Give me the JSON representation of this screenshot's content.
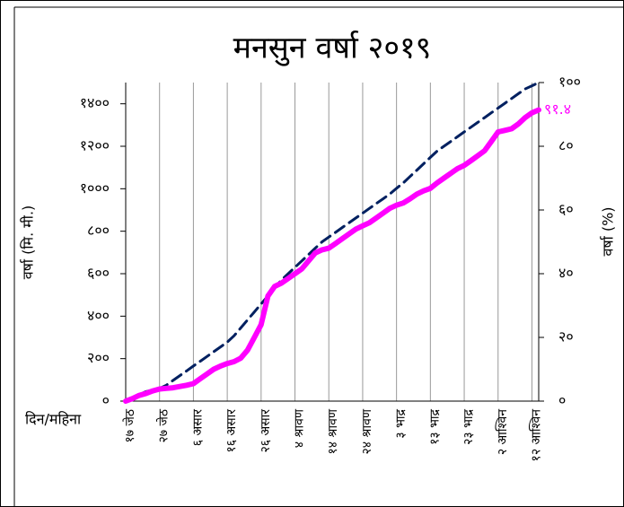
{
  "chart_data": {
    "type": "line",
    "title": "मनसुन वर्षा २०१९",
    "y_label": "वर्षा (मि. मी.)",
    "y2_label": "वर्षा (%)",
    "x_label": "दिन/महिना",
    "categories": [
      "१७ जेठ",
      null,
      null,
      null,
      null,
      "२७ जेठ",
      null,
      null,
      null,
      null,
      "६ असार",
      null,
      null,
      null,
      null,
      "१६ असार",
      null,
      null,
      null,
      null,
      "२६ असार",
      null,
      null,
      null,
      null,
      "४ श्रावण",
      null,
      null,
      null,
      null,
      "१४ श्रावण",
      null,
      null,
      null,
      null,
      "२४ श्रावण",
      null,
      null,
      null,
      null,
      "३ भाद्र",
      null,
      null,
      null,
      null,
      "१३ भाद्र",
      null,
      null,
      null,
      null,
      "२३ भाद्र",
      null,
      null,
      null,
      null,
      "२ आश्विन",
      null,
      null,
      null,
      null,
      "१२ आश्विन",
      null
    ],
    "ylim": [
      0,
      1500
    ],
    "yticks": [
      {
        "value": 0,
        "label": "०"
      },
      {
        "value": 200,
        "label": "२००"
      },
      {
        "value": 400,
        "label": "४००"
      },
      {
        "value": 600,
        "label": "६००"
      },
      {
        "value": 800,
        "label": "८००"
      },
      {
        "value": 1000,
        "label": "१०००"
      },
      {
        "value": 1200,
        "label": "१२००"
      },
      {
        "value": 1400,
        "label": "१४००"
      }
    ],
    "y2lim": [
      0,
      100
    ],
    "y2ticks": [
      {
        "value": 0,
        "label": "०"
      },
      {
        "value": 20,
        "label": "२०"
      },
      {
        "value": 40,
        "label": "४०"
      },
      {
        "value": 60,
        "label": "६०"
      },
      {
        "value": 80,
        "label": "८०"
      },
      {
        "value": 100,
        "label": "१००"
      }
    ],
    "xgrid": true,
    "series": [
      {
        "axis": "y2",
        "color": "#002060",
        "dashed": true,
        "values": [
          0,
          1,
          2,
          3,
          3.5,
          4,
          5,
          6.5,
          8,
          9.5,
          11,
          12.5,
          14,
          15.5,
          17,
          18.5,
          20.5,
          23,
          25.5,
          28,
          30.5,
          33,
          35.5,
          38,
          40,
          42,
          44,
          46,
          48,
          50,
          51.5,
          53,
          54.5,
          56,
          57.5,
          59,
          60.5,
          62,
          63.5,
          65,
          66.8,
          68.5,
          70.5,
          72.5,
          74.5,
          76.5,
          78.5,
          80,
          81.5,
          83,
          84.5,
          86,
          87.5,
          89,
          90.5,
          92,
          93.5,
          95,
          96.5,
          98,
          99,
          100
        ]
      },
      {
        "axis": "y2",
        "color": "#ff00ff",
        "dashed": false,
        "values": [
          0,
          0.8,
          1.8,
          2.4,
          3.2,
          3.8,
          4,
          4.2,
          4.6,
          5,
          5.5,
          7,
          8.5,
          10,
          11,
          11.8,
          12.4,
          13.5,
          16,
          20,
          24,
          33,
          36,
          37,
          38.5,
          40,
          41.5,
          44,
          46.5,
          47.5,
          48,
          49.5,
          51,
          52.5,
          54,
          55,
          56,
          57.5,
          59,
          60.5,
          61.5,
          62.2,
          63.5,
          65,
          66,
          66.8,
          68.5,
          70,
          71.5,
          73,
          74,
          75.5,
          77,
          78.6,
          81.5,
          84.5,
          85,
          85.5,
          87,
          89,
          90.5,
          91.4
        ],
        "value_labels": [
          null,
          null,
          null,
          null,
          null,
          null,
          null,
          null,
          null,
          null,
          null,
          null,
          null,
          null,
          null,
          null,
          null,
          null,
          null,
          null,
          null,
          null,
          null,
          null,
          null,
          null,
          null,
          null,
          null,
          null,
          null,
          null,
          null,
          null,
          null,
          null,
          null,
          null,
          null,
          null,
          null,
          null,
          null,
          null,
          null,
          null,
          null,
          null,
          null,
          null,
          null,
          null,
          null,
          null,
          null,
          null,
          null,
          null,
          null,
          null,
          null,
          "९१.४"
        ]
      }
    ]
  }
}
